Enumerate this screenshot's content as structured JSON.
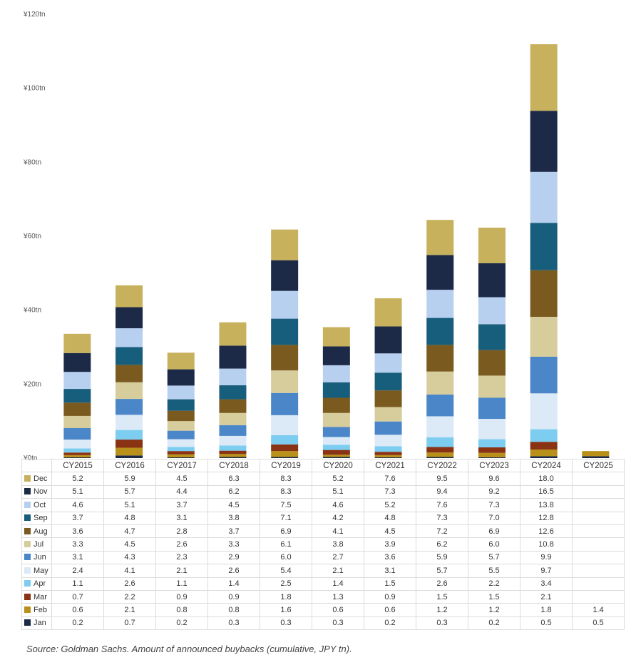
{
  "chart_data": {
    "type": "bar",
    "stacked": true,
    "title": "",
    "xlabel": "",
    "ylabel": "",
    "ylim": [
      0,
      120
    ],
    "y_ticks": [
      "¥0tn",
      "¥20tn",
      "¥40tn",
      "¥60tn",
      "¥80tn",
      "¥100tn",
      "¥120tn"
    ],
    "categories": [
      "CY2015",
      "CY2016",
      "CY2017",
      "CY2018",
      "CY2019",
      "CY2020",
      "CY2021",
      "CY2022",
      "CY2023",
      "CY2024",
      "CY2025"
    ],
    "series": [
      {
        "name": "Jan",
        "color": "#1c2a47",
        "values": [
          0.2,
          0.7,
          0.2,
          0.3,
          0.3,
          0.3,
          0.2,
          0.3,
          0.2,
          0.5,
          0.5
        ],
        "labels": [
          "0.2",
          "0.7",
          "0.2",
          "0.3",
          "0.3",
          "0.3",
          "0.2",
          "0.3",
          "0.2",
          "0.5",
          "0.5"
        ]
      },
      {
        "name": "Feb",
        "color": "#b8901a",
        "values": [
          0.6,
          2.1,
          0.8,
          0.8,
          1.6,
          0.6,
          0.6,
          1.2,
          1.2,
          1.8,
          1.4
        ],
        "labels": [
          "0.6",
          "2.1",
          "0.8",
          "0.8",
          "1.6",
          "0.6",
          "0.6",
          "1.2",
          "1.2",
          "1.8",
          "1.4"
        ]
      },
      {
        "name": "Mar",
        "color": "#8a3214",
        "values": [
          0.7,
          2.2,
          0.9,
          0.9,
          1.8,
          1.3,
          0.9,
          1.5,
          1.5,
          2.1,
          null
        ],
        "labels": [
          "0.7",
          "2.2",
          "0.9",
          "0.9",
          "1.8",
          "1.3",
          "0.9",
          "1.5",
          "1.5",
          "2.1",
          ""
        ]
      },
      {
        "name": "Apr",
        "color": "#7ccdf0",
        "values": [
          1.1,
          2.6,
          1.1,
          1.4,
          2.5,
          1.4,
          1.5,
          2.6,
          2.2,
          3.4,
          null
        ],
        "labels": [
          "1.1",
          "2.6",
          "1.1",
          "1.4",
          "2.5",
          "1.4",
          "1.5",
          "2.6",
          "2.2",
          "3.4",
          ""
        ]
      },
      {
        "name": "May",
        "color": "#dce9f7",
        "values": [
          2.4,
          4.1,
          2.1,
          2.6,
          5.4,
          2.1,
          3.1,
          5.7,
          5.5,
          9.7,
          null
        ],
        "labels": [
          "2.4",
          "4.1",
          "2.1",
          "2.6",
          "5.4",
          "2.1",
          "3.1",
          "5.7",
          "5.5",
          "9.7",
          ""
        ]
      },
      {
        "name": "Jun",
        "color": "#4a86c8",
        "values": [
          3.1,
          4.3,
          2.3,
          2.9,
          6.0,
          2.7,
          3.6,
          5.9,
          5.7,
          9.9,
          null
        ],
        "labels": [
          "3.1",
          "4.3",
          "2.3",
          "2.9",
          "6.0",
          "2.7",
          "3.6",
          "5.9",
          "5.7",
          "9.9",
          ""
        ]
      },
      {
        "name": "Jul",
        "color": "#d6cc9c",
        "values": [
          3.3,
          4.5,
          2.6,
          3.3,
          6.1,
          3.8,
          3.9,
          6.2,
          6.0,
          10.8,
          null
        ],
        "labels": [
          "3.3",
          "4.5",
          "2.6",
          "3.3",
          "6.1",
          "3.8",
          "3.9",
          "6.2",
          "6.0",
          "10.8",
          ""
        ]
      },
      {
        "name": "Aug",
        "color": "#7a5a1e",
        "values": [
          3.6,
          4.7,
          2.8,
          3.7,
          6.9,
          4.1,
          4.5,
          7.2,
          6.9,
          12.6,
          null
        ],
        "labels": [
          "3.6",
          "4.7",
          "2.8",
          "3.7",
          "6.9",
          "4.1",
          "4.5",
          "7.2",
          "6.9",
          "12.6",
          ""
        ]
      },
      {
        "name": "Sep",
        "color": "#175d7c",
        "values": [
          3.7,
          4.8,
          3.1,
          3.8,
          7.1,
          4.2,
          4.8,
          7.3,
          7.0,
          12.8,
          null
        ],
        "labels": [
          "3.7",
          "4.8",
          "3.1",
          "3.8",
          "7.1",
          "4.2",
          "4.8",
          "7.3",
          "7.0",
          "12.8",
          ""
        ]
      },
      {
        "name": "Oct",
        "color": "#b8d0ef",
        "values": [
          4.6,
          5.1,
          3.7,
          4.5,
          7.5,
          4.6,
          5.2,
          7.6,
          7.3,
          13.8,
          null
        ],
        "labels": [
          "4.6",
          "5.1",
          "3.7",
          "4.5",
          "7.5",
          "4.6",
          "5.2",
          "7.6",
          "7.3",
          "13.8",
          ""
        ]
      },
      {
        "name": "Nov",
        "color": "#1c2a47",
        "values": [
          5.1,
          5.7,
          4.4,
          6.2,
          8.3,
          5.1,
          7.3,
          9.4,
          9.2,
          16.5,
          null
        ],
        "labels": [
          "5.1",
          "5.7",
          "4.4",
          "6.2",
          "8.3",
          "5.1",
          "7.3",
          "9.4",
          "9.2",
          "16.5",
          ""
        ]
      },
      {
        "name": "Dec",
        "color": "#c8b15c",
        "values": [
          5.2,
          5.9,
          4.5,
          6.3,
          8.3,
          5.2,
          7.6,
          9.5,
          9.6,
          18.0,
          null
        ],
        "labels": [
          "5.2",
          "5.9",
          "4.5",
          "6.3",
          "8.3",
          "5.2",
          "7.6",
          "9.5",
          "9.6",
          "18.0",
          ""
        ]
      }
    ]
  },
  "source_note": "Source: Goldman Sachs. Amount of announced buybacks (cumulative, JPY tn)."
}
